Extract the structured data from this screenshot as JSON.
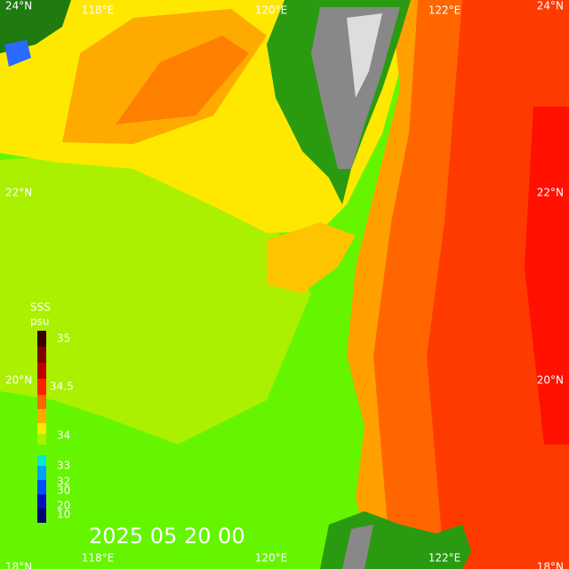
{
  "map": {
    "variable": "SSS",
    "unit": "psu",
    "timestamp": "2025 05 20 00",
    "lon_labels": [
      "118°E",
      "120°E",
      "122°E"
    ],
    "lat_labels": [
      "24°N",
      "22°N",
      "20°N",
      "18°N"
    ],
    "colorbar_labels": [
      "35",
      "34.5",
      "34",
      "33",
      "32",
      "30",
      "20",
      "10"
    ]
  }
}
